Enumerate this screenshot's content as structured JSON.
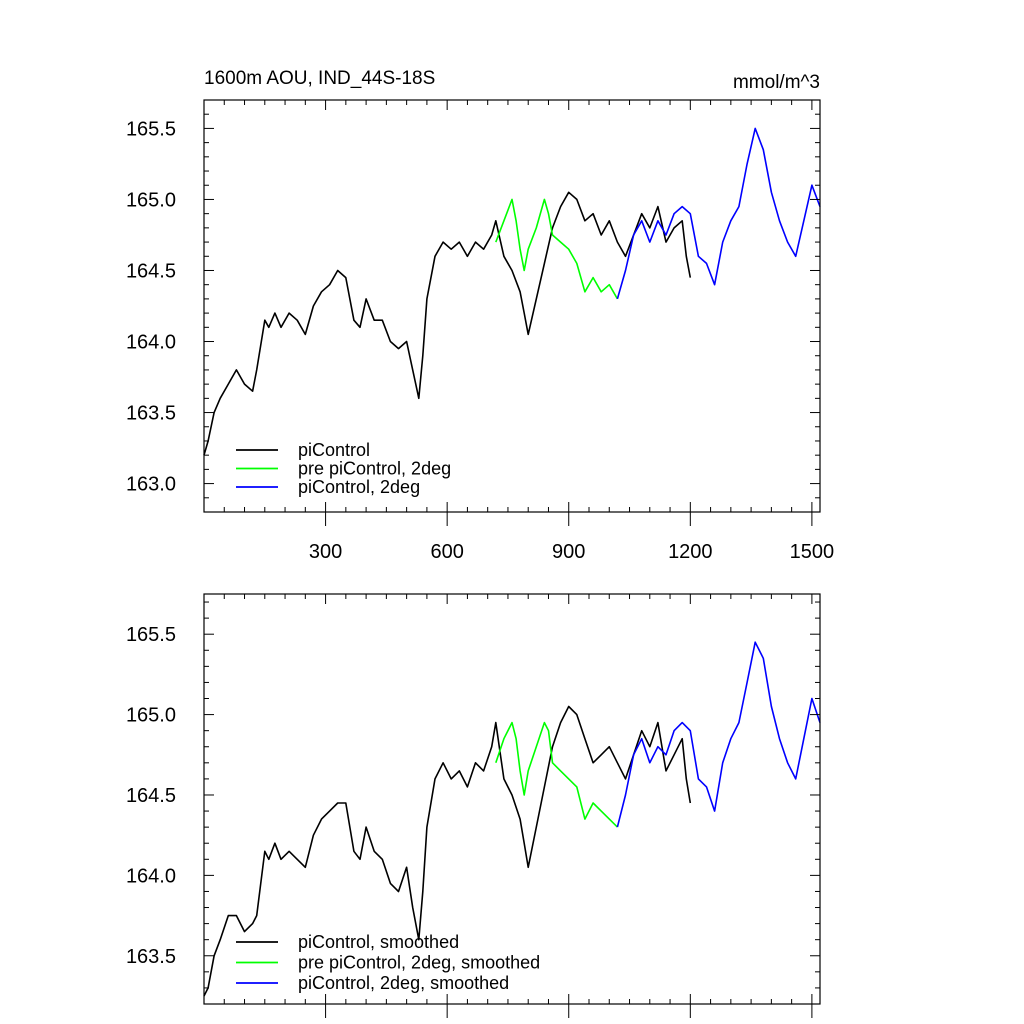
{
  "chart_data": [
    {
      "type": "line",
      "title": "1600m AOU, IND_44S-18S",
      "units": "mmol/m^3",
      "xlim": [
        0,
        1520
      ],
      "ylim": [
        162.8,
        165.7
      ],
      "xticks": [
        300,
        600,
        900,
        1200,
        1500
      ],
      "yticks": [
        163.0,
        163.5,
        164.0,
        164.5,
        165.0,
        165.5
      ],
      "ytick_labels": [
        "163.0",
        "163.5",
        "164.0",
        "164.5",
        "165.0",
        "165.5"
      ],
      "grid": false,
      "legend_position": "bottom-left",
      "series": [
        {
          "name": "piControl",
          "color": "#000000",
          "x": [
            0,
            10,
            25,
            40,
            60,
            80,
            100,
            120,
            130,
            150,
            160,
            175,
            190,
            210,
            230,
            250,
            270,
            290,
            310,
            330,
            350,
            370,
            385,
            400,
            420,
            440,
            460,
            480,
            500,
            515,
            530,
            540,
            550,
            570,
            590,
            610,
            630,
            650,
            670,
            690,
            710,
            720,
            740,
            760,
            780,
            790,
            800,
            820,
            840,
            860,
            880,
            900,
            920,
            940,
            960,
            980,
            1000,
            1020,
            1040,
            1060,
            1080,
            1100,
            1120,
            1140,
            1160,
            1180,
            1190,
            1200
          ],
          "y": [
            163.2,
            163.3,
            163.5,
            163.6,
            163.7,
            163.8,
            163.7,
            163.65,
            163.8,
            164.15,
            164.1,
            164.2,
            164.1,
            164.2,
            164.15,
            164.05,
            164.25,
            164.35,
            164.4,
            164.5,
            164.45,
            164.15,
            164.1,
            164.3,
            164.15,
            164.15,
            164.0,
            163.95,
            164.0,
            163.8,
            163.6,
            163.9,
            164.3,
            164.6,
            164.7,
            164.65,
            164.7,
            164.6,
            164.7,
            164.65,
            164.75,
            164.85,
            164.6,
            164.5,
            164.35,
            164.2,
            164.05,
            164.3,
            164.55,
            164.8,
            164.95,
            165.05,
            165.0,
            164.85,
            164.9,
            164.75,
            164.85,
            164.7,
            164.6,
            164.75,
            164.9,
            164.8,
            164.95,
            164.7,
            164.8,
            164.85,
            164.6,
            164.45
          ]
        },
        {
          "name": "pre piControl, 2deg",
          "color": "#00ff00",
          "x": [
            720,
            740,
            760,
            770,
            780,
            790,
            800,
            820,
            840,
            850,
            860,
            880,
            900,
            920,
            940,
            960,
            980,
            1000,
            1020
          ],
          "y": [
            164.7,
            164.85,
            165.0,
            164.85,
            164.65,
            164.5,
            164.65,
            164.8,
            165.0,
            164.9,
            164.75,
            164.7,
            164.65,
            164.55,
            164.35,
            164.45,
            164.35,
            164.4,
            164.3
          ]
        },
        {
          "name": "piControl, 2deg",
          "color": "#0000ff",
          "x": [
            1020,
            1040,
            1060,
            1080,
            1100,
            1120,
            1140,
            1160,
            1180,
            1200,
            1220,
            1240,
            1260,
            1280,
            1300,
            1320,
            1340,
            1360,
            1380,
            1400,
            1420,
            1440,
            1460,
            1480,
            1500,
            1520
          ],
          "y": [
            164.3,
            164.5,
            164.75,
            164.85,
            164.7,
            164.85,
            164.75,
            164.9,
            164.95,
            164.9,
            164.6,
            164.55,
            164.4,
            164.7,
            164.85,
            164.95,
            165.25,
            165.5,
            165.35,
            165.05,
            164.85,
            164.7,
            164.6,
            164.85,
            165.1,
            164.95
          ]
        }
      ]
    },
    {
      "type": "line",
      "title": "",
      "xlim": [
        0,
        1520
      ],
      "ylim": [
        163.2,
        165.75
      ],
      "xticks": [
        300,
        600,
        900,
        1200,
        1500
      ],
      "yticks": [
        163.5,
        164.0,
        164.5,
        165.0,
        165.5
      ],
      "ytick_labels": [
        "163.5",
        "164.0",
        "164.5",
        "165.0",
        "165.5"
      ],
      "grid": false,
      "legend_position": "bottom-left",
      "series": [
        {
          "name": "piControl, smoothed",
          "color": "#000000",
          "x": [
            0,
            10,
            25,
            40,
            60,
            80,
            100,
            120,
            130,
            150,
            160,
            175,
            190,
            210,
            230,
            250,
            270,
            290,
            310,
            330,
            350,
            370,
            385,
            400,
            420,
            440,
            460,
            480,
            500,
            515,
            530,
            540,
            550,
            570,
            590,
            610,
            630,
            650,
            670,
            690,
            710,
            720,
            740,
            760,
            780,
            790,
            800,
            820,
            840,
            860,
            880,
            900,
            920,
            940,
            960,
            980,
            1000,
            1020,
            1040,
            1060,
            1080,
            1100,
            1120,
            1140,
            1160,
            1180,
            1190,
            1200
          ],
          "y": [
            163.25,
            163.3,
            163.5,
            163.6,
            163.75,
            163.75,
            163.65,
            163.7,
            163.75,
            164.15,
            164.1,
            164.2,
            164.1,
            164.15,
            164.1,
            164.05,
            164.25,
            164.35,
            164.4,
            164.45,
            164.45,
            164.15,
            164.1,
            164.3,
            164.15,
            164.1,
            163.95,
            163.9,
            164.05,
            163.8,
            163.6,
            163.9,
            164.3,
            164.6,
            164.7,
            164.6,
            164.65,
            164.55,
            164.7,
            164.65,
            164.8,
            164.95,
            164.6,
            164.5,
            164.35,
            164.2,
            164.05,
            164.3,
            164.55,
            164.8,
            164.95,
            165.05,
            165.0,
            164.85,
            164.7,
            164.75,
            164.8,
            164.7,
            164.6,
            164.75,
            164.9,
            164.8,
            164.95,
            164.65,
            164.75,
            164.85,
            164.6,
            164.45
          ]
        },
        {
          "name": "pre piControl, 2deg, smoothed",
          "color": "#00ff00",
          "x": [
            720,
            740,
            760,
            770,
            780,
            790,
            800,
            820,
            840,
            850,
            860,
            880,
            900,
            920,
            940,
            960,
            980,
            1000,
            1020
          ],
          "y": [
            164.7,
            164.85,
            164.95,
            164.85,
            164.65,
            164.5,
            164.65,
            164.8,
            164.95,
            164.9,
            164.7,
            164.65,
            164.6,
            164.55,
            164.35,
            164.45,
            164.4,
            164.35,
            164.3
          ]
        },
        {
          "name": "piControl, 2deg, smoothed",
          "color": "#0000ff",
          "x": [
            1020,
            1040,
            1060,
            1080,
            1100,
            1120,
            1140,
            1160,
            1180,
            1200,
            1220,
            1240,
            1260,
            1280,
            1300,
            1320,
            1340,
            1360,
            1380,
            1400,
            1420,
            1440,
            1460,
            1480,
            1500,
            1520
          ],
          "y": [
            164.3,
            164.5,
            164.75,
            164.85,
            164.7,
            164.8,
            164.75,
            164.9,
            164.95,
            164.9,
            164.6,
            164.55,
            164.4,
            164.7,
            164.85,
            164.95,
            165.2,
            165.45,
            165.35,
            165.05,
            164.85,
            164.7,
            164.6,
            164.85,
            165.1,
            164.95
          ]
        }
      ]
    }
  ]
}
